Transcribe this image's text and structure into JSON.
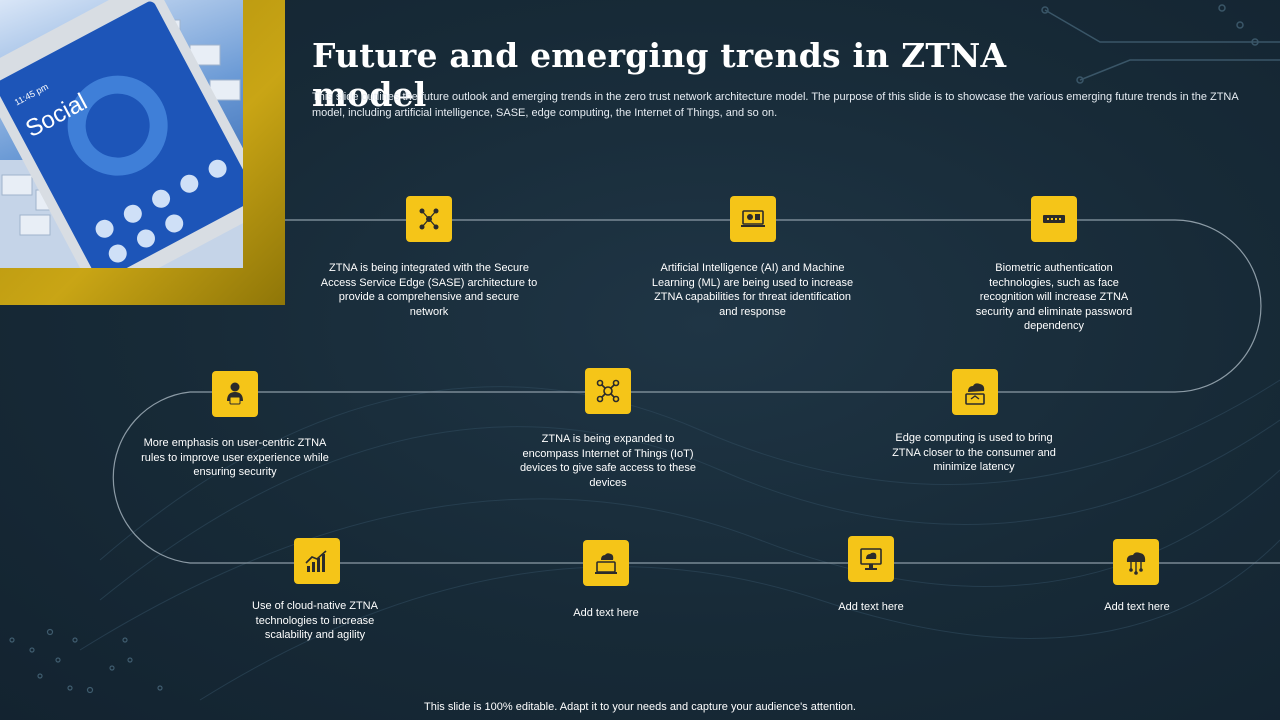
{
  "slide": {
    "title": "Future and emerging trends in ZTNA model",
    "subtitle": "This slide outlines the future outlook and emerging trends in the zero trust network architecture model. The purpose of this slide is to showcase the various emerging future trends in the ZTNA model, including artificial intelligence, SASE, edge computing, the Internet of Things, and so on.",
    "footer": "This slide is 100% editable. Adapt it to your needs and capture your audience's attention.",
    "photo_text": "Social",
    "accent_color": "#f5c518",
    "background_color": "#172a37"
  },
  "trends": [
    {
      "icon": "network-people-icon",
      "text": "ZTNA is being integrated with the Secure Access Service Edge (SASE) architecture to provide a comprehensive and secure network"
    },
    {
      "icon": "ai-laptop-icon",
      "text": "Artificial Intelligence (AI) and Machine Learning (ML) are being used to increase ZTNA capabilities for threat identification and response"
    },
    {
      "icon": "biometric-scanner-icon",
      "text": "Biometric authentication technologies, such as face recognition will increase ZTNA security and eliminate password dependency"
    },
    {
      "icon": "user-computer-icon",
      "text": "More emphasis on user-centric ZTNA rules to improve user experience while ensuring security"
    },
    {
      "icon": "iot-network-icon",
      "text": "ZTNA is being expanded to encompass Internet of Things (IoT) devices to give safe access to these devices"
    },
    {
      "icon": "edge-cloud-icon",
      "text": "Edge computing is used to bring ZTNA closer to the consumer and minimize latency"
    },
    {
      "icon": "growth-chart-icon",
      "text": "Use of cloud-native ZTNA technologies to increase scalability and agility"
    },
    {
      "icon": "cloud-laptop-icon",
      "text": "Add text here"
    },
    {
      "icon": "cloud-monitor-icon",
      "text": "Add text here"
    },
    {
      "icon": "cloud-network-icon",
      "text": "Add text here"
    }
  ]
}
